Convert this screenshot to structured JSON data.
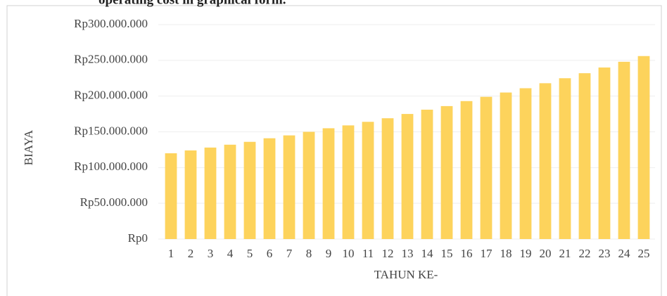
{
  "caption": "operating cost in graphical form.",
  "chart_data": {
    "type": "bar",
    "x_label": "TAHUN KE-",
    "y_label": "BIAYA",
    "categories": [
      "1",
      "2",
      "3",
      "4",
      "5",
      "6",
      "7",
      "8",
      "9",
      "10",
      "11",
      "12",
      "13",
      "14",
      "15",
      "16",
      "17",
      "18",
      "19",
      "20",
      "21",
      "22",
      "23",
      "24",
      "25"
    ],
    "values": [
      120000000,
      124000000,
      128000000,
      132000000,
      136000000,
      141000000,
      145000000,
      150000000,
      155000000,
      159000000,
      164000000,
      169000000,
      175000000,
      181000000,
      186000000,
      193000000,
      199000000,
      205000000,
      211000000,
      218000000,
      225000000,
      232000000,
      240000000,
      248000000,
      256000000
    ],
    "color": "#fdd35c",
    "ylim": [
      0,
      300000000
    ],
    "yticks": [
      {
        "value": 0,
        "label": "Rp0"
      },
      {
        "value": 50000000,
        "label": "Rp50.000.000"
      },
      {
        "value": 100000000,
        "label": "Rp100.000.000"
      },
      {
        "value": 150000000,
        "label": "Rp150.000.000"
      },
      {
        "value": 200000000,
        "label": "Rp200.000.000"
      },
      {
        "value": 250000000,
        "label": "Rp250.000.000"
      },
      {
        "value": 300000000,
        "label": "Rp300.000.000"
      }
    ],
    "grid": true
  }
}
